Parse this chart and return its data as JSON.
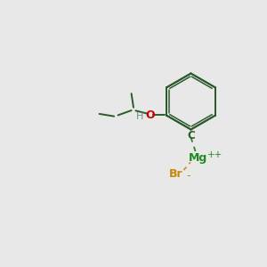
{
  "bg_color": "#e8e8e8",
  "bond_color": "#2d5a2d",
  "atom_C_color": "#2d5a2d",
  "atom_O_color": "#cc0000",
  "atom_Mg_color": "#228b22",
  "atom_Br_color": "#c8860a",
  "atom_H_color": "#6a9090",
  "figsize": [
    3.0,
    3.0
  ],
  "dpi": 100,
  "xlim": [
    0,
    10
  ],
  "ylim": [
    0,
    10
  ]
}
